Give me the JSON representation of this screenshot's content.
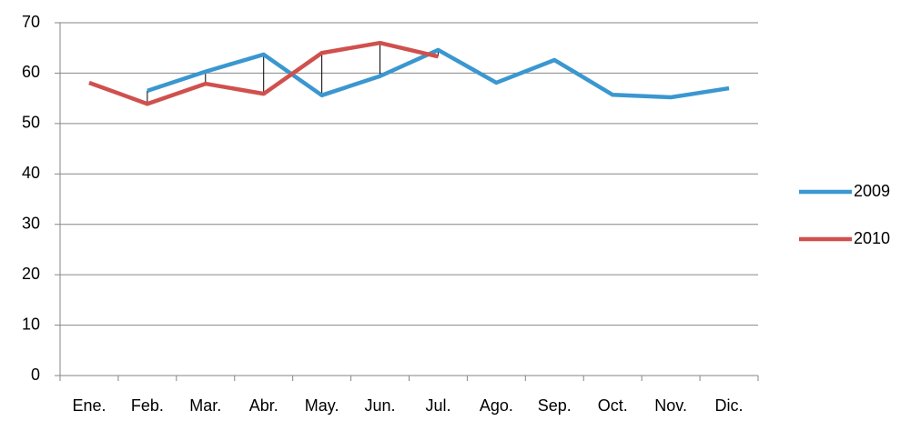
{
  "chart_data": {
    "type": "line",
    "categories": [
      "Ene.",
      "Feb.",
      "Mar.",
      "Abr.",
      "May.",
      "Jun.",
      "Jul.",
      "Ago.",
      "Sep.",
      "Oct.",
      "Nov.",
      "Dic."
    ],
    "series": [
      {
        "name": "2009",
        "color": "#3a97d0",
        "values": [
          null,
          56.5,
          60.3,
          63.7,
          55.6,
          59.4,
          64.6,
          58.1,
          62.6,
          55.7,
          55.2,
          57.0
        ]
      },
      {
        "name": "2010",
        "color": "#d0504d",
        "values": [
          58.1,
          53.9,
          57.9,
          55.9,
          64.0,
          66.0,
          63.3,
          null,
          null,
          null,
          null,
          null
        ]
      }
    ],
    "ylim": [
      0,
      70
    ],
    "yticks": [
      0,
      10,
      20,
      30,
      40,
      50,
      60,
      70
    ],
    "grid": true,
    "legend": "right",
    "high_low_lines": true
  }
}
